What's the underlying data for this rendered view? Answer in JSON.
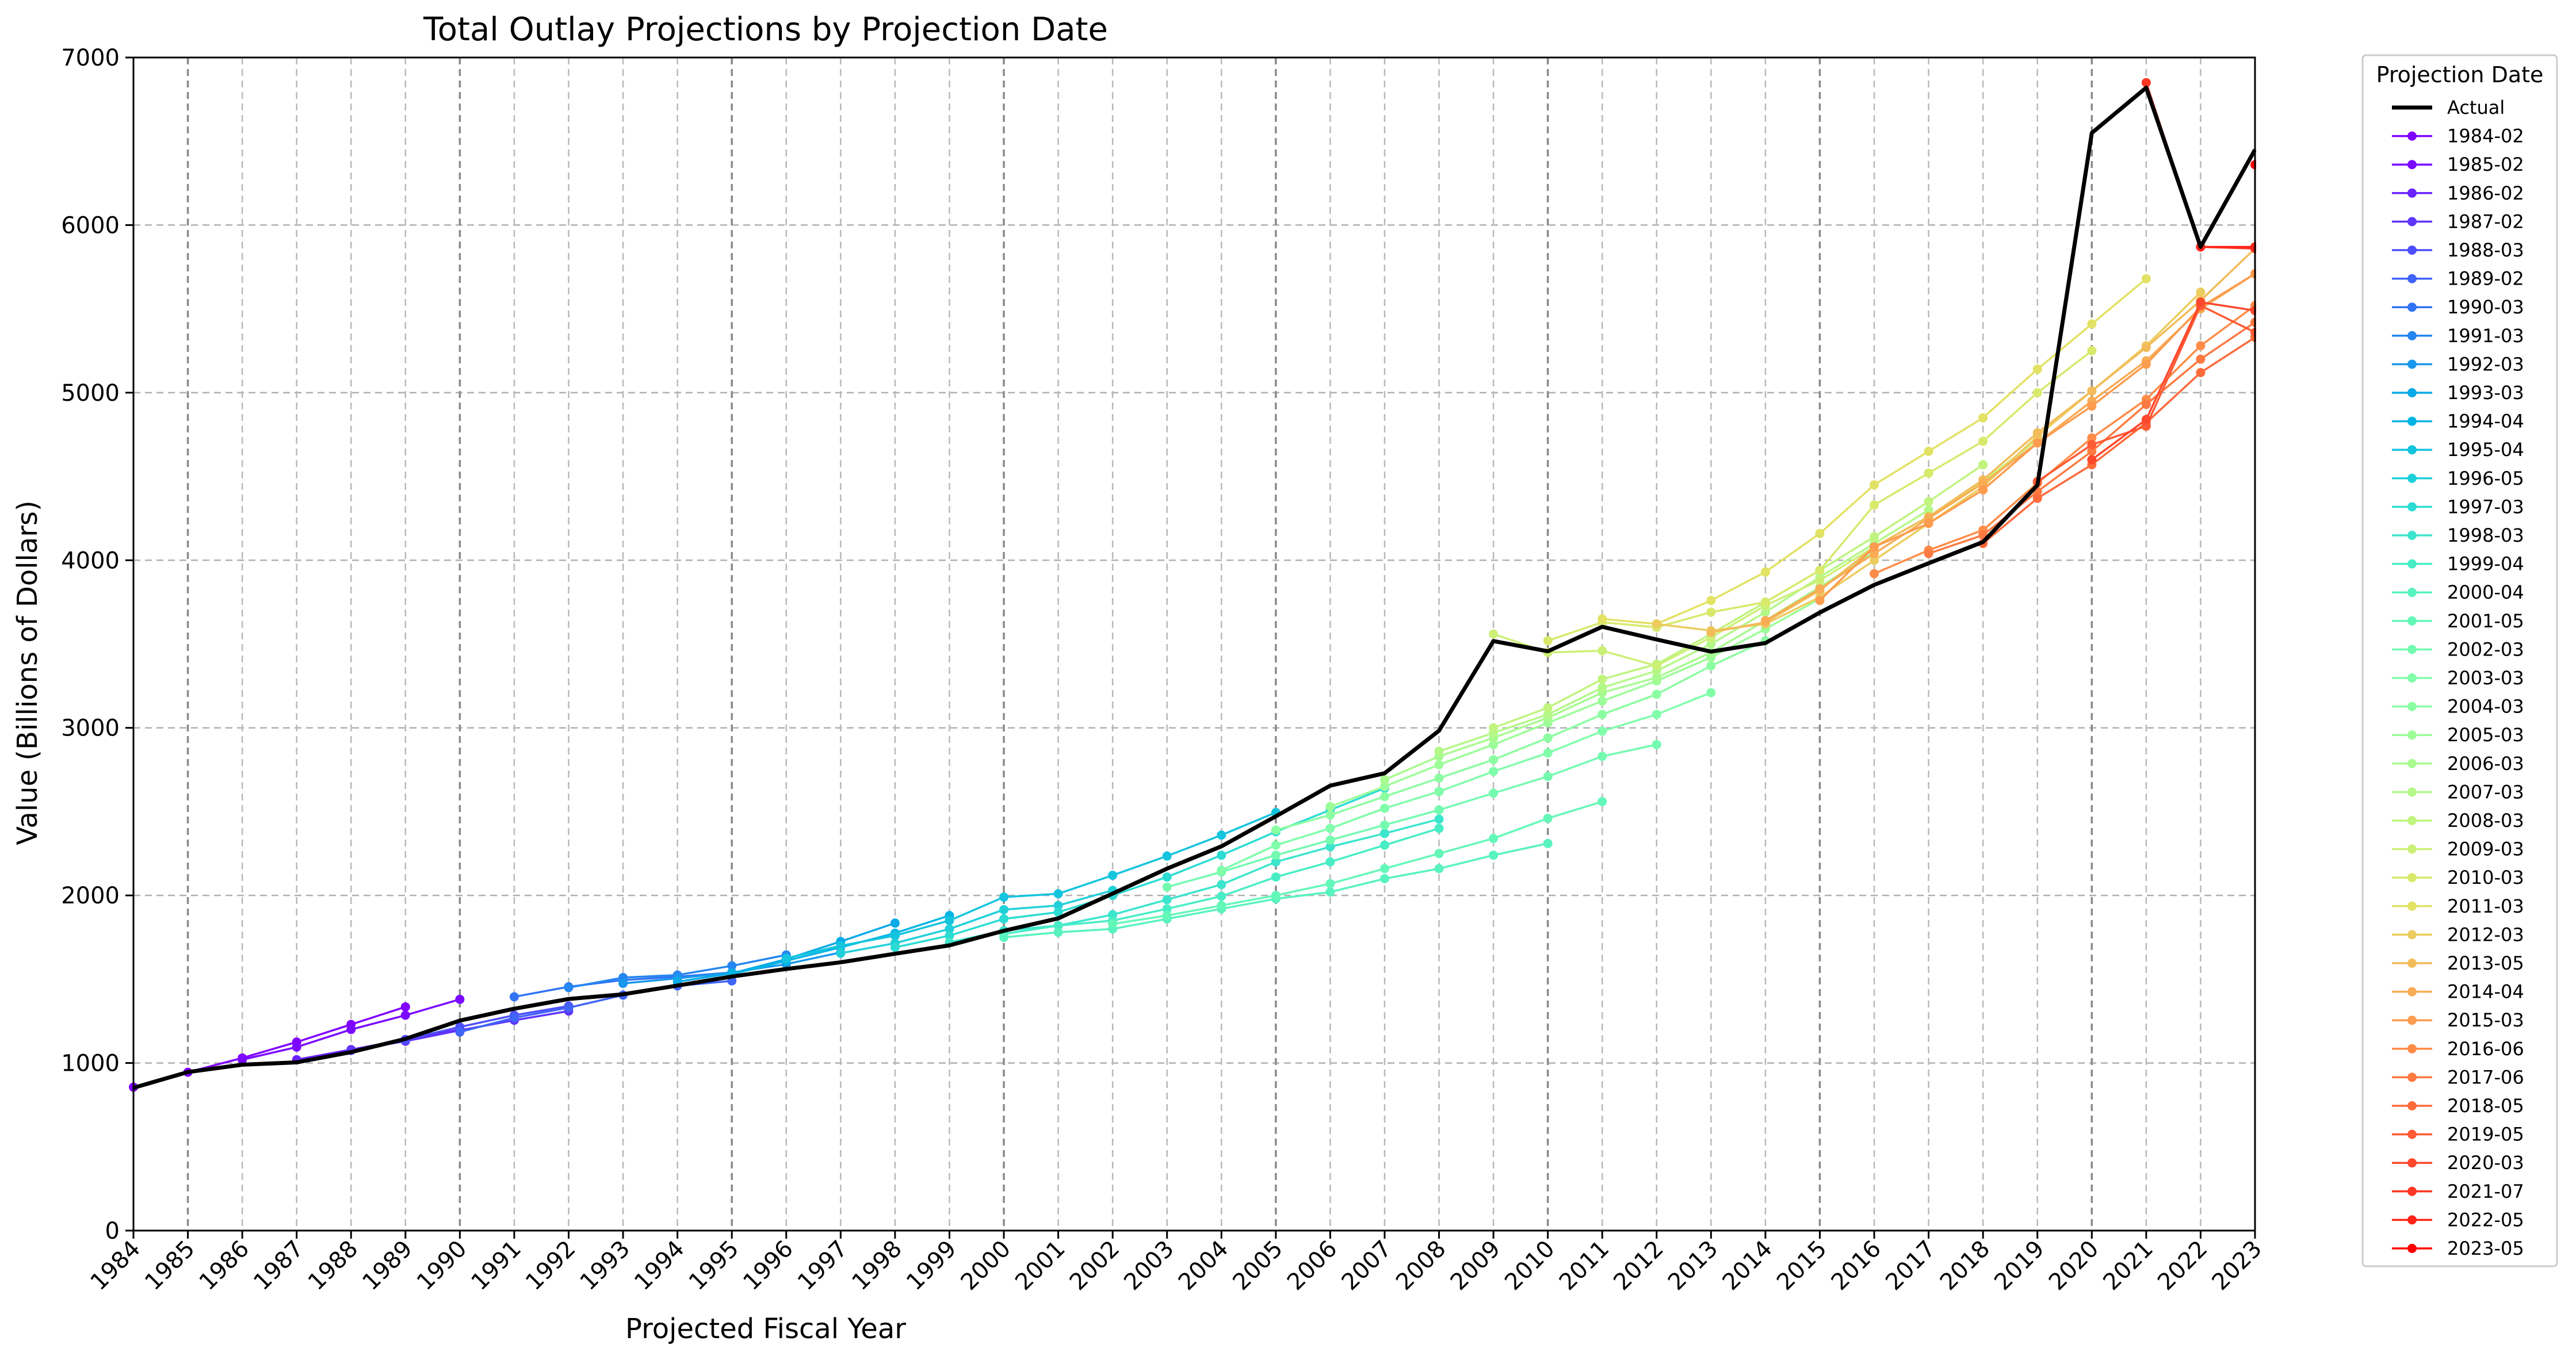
{
  "chart_data": {
    "type": "line",
    "title": "Total Outlay Projections by Projection Date",
    "xlabel": "Projected Fiscal Year",
    "ylabel": "Value (Billions of Dollars)",
    "xlim": [
      1984,
      2023
    ],
    "ylim": [
      0,
      7000
    ],
    "x_ticks": [
      1984,
      1985,
      1986,
      1987,
      1988,
      1989,
      1990,
      1991,
      1992,
      1993,
      1994,
      1995,
      1996,
      1997,
      1998,
      1999,
      2000,
      2001,
      2002,
      2003,
      2004,
      2005,
      2006,
      2007,
      2008,
      2009,
      2010,
      2011,
      2012,
      2013,
      2014,
      2015,
      2016,
      2017,
      2018,
      2019,
      2020,
      2021,
      2022,
      2023
    ],
    "x_tick_labels": [
      "1984",
      "1985",
      "1986",
      "1987",
      "1988",
      "1989",
      "1990",
      "1991",
      "1992",
      "1993",
      "1994",
      "1995",
      "1996",
      "1997",
      "1998",
      "1999",
      "2000",
      "2001",
      "2002",
      "2003",
      "2004",
      "2005",
      "2006",
      "2007",
      "2008",
      "2009",
      "2010",
      "2011",
      "2012",
      "2013",
      "2014",
      "2015",
      "2016",
      "2017",
      "2018",
      "2019",
      "2020",
      "2021",
      "2022",
      "2023"
    ],
    "y_ticks": [
      0,
      1000,
      2000,
      3000,
      4000,
      5000,
      6000,
      7000
    ],
    "y_tick_labels": [
      "0",
      "1000",
      "2000",
      "3000",
      "4000",
      "5000",
      "6000",
      "7000"
    ],
    "grid": true,
    "legend_title": "Projection Date",
    "legend_position": "outside-right",
    "actual": {
      "name": "Actual",
      "color": "#000000",
      "x": [
        1984,
        1985,
        1986,
        1987,
        1988,
        1989,
        1990,
        1991,
        1992,
        1993,
        1994,
        1995,
        1996,
        1997,
        1998,
        1999,
        2000,
        2001,
        2002,
        2003,
        2004,
        2005,
        2006,
        2007,
        2008,
        2009,
        2010,
        2011,
        2012,
        2013,
        2014,
        2015,
        2016,
        2017,
        2018,
        2019,
        2020,
        2021,
        2022,
        2023
      ],
      "y": [
        852,
        946,
        990,
        1004,
        1065,
        1144,
        1253,
        1324,
        1382,
        1410,
        1462,
        1516,
        1561,
        1601,
        1652,
        1702,
        1789,
        1863,
        2011,
        2160,
        2293,
        2472,
        2655,
        2729,
        2983,
        3518,
        3457,
        3603,
        3527,
        3455,
        3506,
        3688,
        3853,
        3982,
        4109,
        4448,
        6550,
        6820,
        5870,
        6450
      ]
    },
    "series": [
      {
        "name": "1984-02",
        "color": "#8000ff",
        "x": [
          1984,
          1985,
          1986,
          1987,
          1988,
          1989
        ],
        "y": [
          856,
          945,
          1030,
          1125,
          1230,
          1335
        ]
      },
      {
        "name": "1985-02",
        "color": "#7a0aff",
        "x": [
          1986,
          1987,
          1988,
          1989,
          1990
        ],
        "y": [
          1020,
          1095,
          1200,
          1285,
          1380
        ]
      },
      {
        "name": "1986-02",
        "color": "#6a22fe",
        "x": [
          1987,
          1988,
          1989,
          1990
        ],
        "y": [
          1020,
          1080,
          1140,
          1200
        ]
      },
      {
        "name": "1987-02",
        "color": "#5e35fd",
        "x": [
          1988,
          1989,
          1990,
          1991,
          1992
        ],
        "y": [
          1075,
          1130,
          1195,
          1255,
          1310
        ]
      },
      {
        "name": "1988-03",
        "color": "#4d4efb",
        "x": [
          1989,
          1990,
          1991,
          1992
        ],
        "y": [
          1140,
          1215,
          1285,
          1340
        ]
      },
      {
        "name": "1989-02",
        "color": "#4064f8",
        "x": [
          1990,
          1991,
          1992,
          1993,
          1994,
          1995
        ],
        "y": [
          1185,
          1270,
          1330,
          1405,
          1460,
          1490
        ]
      },
      {
        "name": "1990-03",
        "color": "#3073f4",
        "x": [
          1991,
          1992,
          1993,
          1994,
          1995
        ],
        "y": [
          1395,
          1455,
          1495,
          1515,
          1540
        ]
      },
      {
        "name": "1991-03",
        "color": "#2486f0",
        "x": [
          1992,
          1993,
          1994,
          1995,
          1996
        ],
        "y": [
          1450,
          1510,
          1525,
          1580,
          1645
        ]
      },
      {
        "name": "1992-03",
        "color": "#1898ec",
        "x": [
          1993,
          1994,
          1995,
          1996,
          1997
        ],
        "y": [
          1475,
          1505,
          1540,
          1590,
          1660
        ]
      },
      {
        "name": "1993-03",
        "color": "#08aae7",
        "x": [
          1994,
          1995,
          1996,
          1997,
          1998
        ],
        "y": [
          1485,
          1535,
          1620,
          1725,
          1835
        ]
      },
      {
        "name": "1994-04",
        "color": "#04b5e4",
        "x": [
          1995,
          1996,
          1997,
          1998,
          1999
        ],
        "y": [
          1530,
          1610,
          1690,
          1775,
          1880
        ]
      },
      {
        "name": "1995-04",
        "color": "#14c4de",
        "x": [
          1996,
          1997,
          1998,
          1999,
          2000,
          2001,
          2002,
          2003,
          2004,
          2005
        ],
        "y": [
          1625,
          1700,
          1760,
          1850,
          1990,
          2010,
          2120,
          2235,
          2360,
          2495
        ]
      },
      {
        "name": "1996-05",
        "color": "#20d0d9",
        "x": [
          1997,
          1998,
          1999,
          2000,
          2001,
          2002
        ],
        "y": [
          1655,
          1715,
          1800,
          1915,
          1940,
          2030
        ]
      },
      {
        "name": "1997-03",
        "color": "#2cdcd3",
        "x": [
          1998,
          1999,
          2000,
          2001,
          2002,
          2003,
          2004,
          2005,
          2006,
          2007
        ],
        "y": [
          1690,
          1760,
          1860,
          1900,
          2000,
          2110,
          2240,
          2380,
          2510,
          2640
        ]
      },
      {
        "name": "1998-03",
        "color": "#3ce5cc",
        "x": [
          1999,
          2000,
          2001,
          2002,
          2003,
          2004,
          2005,
          2006,
          2007,
          2008
        ],
        "y": [
          1720,
          1790,
          1820,
          1885,
          1975,
          2065,
          2200,
          2290,
          2370,
          2455
        ]
      },
      {
        "name": "1999-04",
        "color": "#48edc6",
        "x": [
          2000,
          2001,
          2002,
          2003,
          2004,
          2005,
          2006,
          2007,
          2008
        ],
        "y": [
          1770,
          1820,
          1850,
          1920,
          1995,
          2110,
          2200,
          2300,
          2400
        ]
      },
      {
        "name": "2000-04",
        "color": "#58f3be",
        "x": [
          2000,
          2001,
          2002,
          2003,
          2004,
          2005,
          2006,
          2007,
          2008,
          2009,
          2010
        ],
        "y": [
          1750,
          1780,
          1800,
          1860,
          1920,
          1980,
          2020,
          2100,
          2160,
          2240,
          2310
        ]
      },
      {
        "name": "2001-05",
        "color": "#64f8b8",
        "x": [
          2002,
          2003,
          2004,
          2005,
          2006,
          2007,
          2008,
          2009,
          2010,
          2011
        ],
        "y": [
          1830,
          1880,
          1940,
          2000,
          2070,
          2160,
          2250,
          2340,
          2460,
          2560
        ]
      },
      {
        "name": "2002-03",
        "color": "#74fbb0",
        "x": [
          2003,
          2004,
          2005,
          2006,
          2007,
          2008,
          2009,
          2010,
          2011,
          2012
        ],
        "y": [
          2050,
          2140,
          2240,
          2330,
          2420,
          2510,
          2610,
          2710,
          2830,
          2900
        ]
      },
      {
        "name": "2003-03",
        "color": "#80feaa",
        "x": [
          2004,
          2005,
          2006,
          2007,
          2008,
          2009,
          2010,
          2011,
          2012,
          2013
        ],
        "y": [
          2150,
          2300,
          2400,
          2520,
          2620,
          2740,
          2850,
          2980,
          3080,
          3210
        ]
      },
      {
        "name": "2004-03",
        "color": "#8cfea2",
        "x": [
          2005,
          2006,
          2007,
          2008,
          2009,
          2010,
          2011,
          2012,
          2013,
          2014
        ],
        "y": [
          2390,
          2480,
          2590,
          2700,
          2810,
          2940,
          3080,
          3200,
          3370,
          3520
        ]
      },
      {
        "name": "2005-03",
        "color": "#9cfe98",
        "x": [
          2006,
          2007,
          2008,
          2009,
          2010,
          2011,
          2012,
          2013,
          2014,
          2015
        ],
        "y": [
          2530,
          2650,
          2780,
          2900,
          3030,
          3160,
          3280,
          3420,
          3590,
          3770
        ]
      },
      {
        "name": "2006-03",
        "color": "#a8fb90",
        "x": [
          2007,
          2008,
          2009,
          2010,
          2011,
          2012,
          2013,
          2014,
          2015,
          2016
        ],
        "y": [
          2690,
          2830,
          2940,
          3060,
          3210,
          3300,
          3450,
          3640,
          3840,
          4050
        ]
      },
      {
        "name": "2007-03",
        "color": "#b4f888",
        "x": [
          2008,
          2009,
          2010,
          2011,
          2012,
          2013,
          2014,
          2015,
          2016,
          2017
        ],
        "y": [
          2860,
          2970,
          3080,
          3240,
          3340,
          3500,
          3690,
          3900,
          4100,
          4300
        ]
      },
      {
        "name": "2008-03",
        "color": "#c0f47e",
        "x": [
          2009,
          2010,
          2011,
          2012,
          2013,
          2014,
          2015,
          2016,
          2017,
          2018
        ],
        "y": [
          3000,
          3120,
          3290,
          3380,
          3560,
          3750,
          3940,
          4140,
          4350,
          4570
        ]
      },
      {
        "name": "2009-03",
        "color": "#ccf076",
        "x": [
          2009,
          2010,
          2011,
          2012,
          2013,
          2014,
          2015,
          2016,
          2017,
          2018,
          2019
        ],
        "y": [
          3560,
          3450,
          3460,
          3370,
          3540,
          3730,
          3880,
          4080,
          4260,
          4470,
          4720
        ]
      },
      {
        "name": "2010-03",
        "color": "#d8e96c",
        "x": [
          2010,
          2011,
          2012,
          2013,
          2014,
          2015,
          2016,
          2017,
          2018,
          2019,
          2020
        ],
        "y": [
          3520,
          3630,
          3600,
          3690,
          3750,
          3940,
          4330,
          4520,
          4710,
          5000,
          5250
        ]
      },
      {
        "name": "2011-03",
        "color": "#e2e264",
        "x": [
          2011,
          2012,
          2013,
          2014,
          2015,
          2016,
          2017,
          2018,
          2019,
          2020,
          2021
        ],
        "y": [
          3650,
          3620,
          3760,
          3930,
          4160,
          4450,
          4650,
          4850,
          5140,
          5410,
          5680
        ]
      },
      {
        "name": "2012-03",
        "color": "#eccc5e",
        "x": [
          2012,
          2013,
          2014,
          2015,
          2016,
          2017,
          2018,
          2019,
          2020,
          2021,
          2022
        ],
        "y": [
          3620,
          3580,
          3620,
          3780,
          4000,
          4220,
          4440,
          4740,
          5010,
          5280,
          5600
        ]
      },
      {
        "name": "2013-05",
        "color": "#f2bc5a",
        "x": [
          2013,
          2014,
          2015,
          2016,
          2017,
          2018,
          2019,
          2020,
          2021,
          2022,
          2023
        ],
        "y": [
          3570,
          3630,
          3820,
          4080,
          4260,
          4480,
          4760,
          5010,
          5270,
          5550,
          5860
        ]
      },
      {
        "name": "2014-04",
        "color": "#f8ac54",
        "x": [
          2014,
          2015,
          2016,
          2017,
          2018,
          2019,
          2020,
          2021,
          2022,
          2023
        ],
        "y": [
          3640,
          3830,
          4040,
          4250,
          4460,
          4700,
          4950,
          5190,
          5500,
          5710
        ]
      },
      {
        "name": "2015-03",
        "color": "#fc9c4e",
        "x": [
          2015,
          2016,
          2017,
          2018,
          2019,
          2020,
          2021,
          2022,
          2023
        ],
        "y": [
          3760,
          4080,
          4220,
          4420,
          4700,
          4920,
          5170,
          5510,
          5710
        ]
      },
      {
        "name": "2016-06",
        "color": "#fe8c48",
        "x": [
          2016,
          2017,
          2018,
          2019,
          2020,
          2021,
          2022,
          2023
        ],
        "y": [
          3920,
          4060,
          4180,
          4460,
          4730,
          4960,
          5280,
          5520
        ]
      },
      {
        "name": "2017-06",
        "color": "#fe7a42",
        "x": [
          2017,
          2018,
          2019,
          2020,
          2021,
          2022,
          2023
        ],
        "y": [
          4040,
          4150,
          4410,
          4650,
          4930,
          5200,
          5420
        ]
      },
      {
        "name": "2018-05",
        "color": "#fe6a3a",
        "x": [
          2018,
          2019,
          2020,
          2021,
          2022,
          2023
        ],
        "y": [
          4100,
          4370,
          4570,
          4820,
          5120,
          5330
        ]
      },
      {
        "name": "2019-05",
        "color": "#fe5a34",
        "x": [
          2019,
          2020,
          2021,
          2022,
          2023
        ],
        "y": [
          4470,
          4690,
          4800,
          5520,
          5360
        ]
      },
      {
        "name": "2020-03",
        "color": "#fe482c",
        "x": [
          2020,
          2021,
          2022,
          2023
        ],
        "y": [
          4600,
          4840,
          5540,
          5490
        ]
      },
      {
        "name": "2021-07",
        "color": "#fe3624",
        "x": [
          2021,
          2022,
          2023
        ],
        "y": [
          6850,
          5870,
          5860
        ]
      },
      {
        "name": "2022-05",
        "color": "#fe2418",
        "x": [
          2022,
          2023
        ],
        "y": [
          5870,
          5870
        ]
      },
      {
        "name": "2023-05",
        "color": "#ff0000",
        "x": [
          2023
        ],
        "y": [
          6360
        ]
      }
    ]
  }
}
